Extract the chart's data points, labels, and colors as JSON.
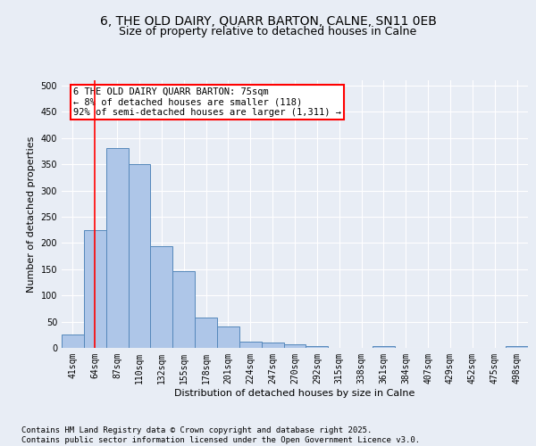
{
  "title_line1": "6, THE OLD DAIRY, QUARR BARTON, CALNE, SN11 0EB",
  "title_line2": "Size of property relative to detached houses in Calne",
  "xlabel": "Distribution of detached houses by size in Calne",
  "ylabel": "Number of detached properties",
  "categories": [
    "41sqm",
    "64sqm",
    "87sqm",
    "110sqm",
    "132sqm",
    "155sqm",
    "178sqm",
    "201sqm",
    "224sqm",
    "247sqm",
    "270sqm",
    "292sqm",
    "315sqm",
    "338sqm",
    "361sqm",
    "384sqm",
    "407sqm",
    "429sqm",
    "452sqm",
    "475sqm",
    "498sqm"
  ],
  "values": [
    25,
    225,
    380,
    350,
    193,
    146,
    57,
    40,
    12,
    10,
    6,
    4,
    0,
    0,
    3,
    0,
    0,
    0,
    0,
    0,
    4
  ],
  "bar_color": "#aec6e8",
  "bar_edge_color": "#5588bb",
  "vline_x": 1,
  "vline_color": "red",
  "annotation_text": "6 THE OLD DAIRY QUARR BARTON: 75sqm\n← 8% of detached houses are smaller (118)\n92% of semi-detached houses are larger (1,311) →",
  "annotation_box_color": "white",
  "annotation_edge_color": "red",
  "ylim": [
    0,
    510
  ],
  "yticks": [
    0,
    50,
    100,
    150,
    200,
    250,
    300,
    350,
    400,
    450,
    500
  ],
  "footer": "Contains HM Land Registry data © Crown copyright and database right 2025.\nContains public sector information licensed under the Open Government Licence v3.0.",
  "background_color": "#e8edf5",
  "plot_background": "#e8edf5",
  "grid_color": "white",
  "title_fontsize": 10,
  "subtitle_fontsize": 9,
  "axis_label_fontsize": 8,
  "tick_fontsize": 7,
  "footer_fontsize": 6.5,
  "annotation_fontsize": 7.5
}
